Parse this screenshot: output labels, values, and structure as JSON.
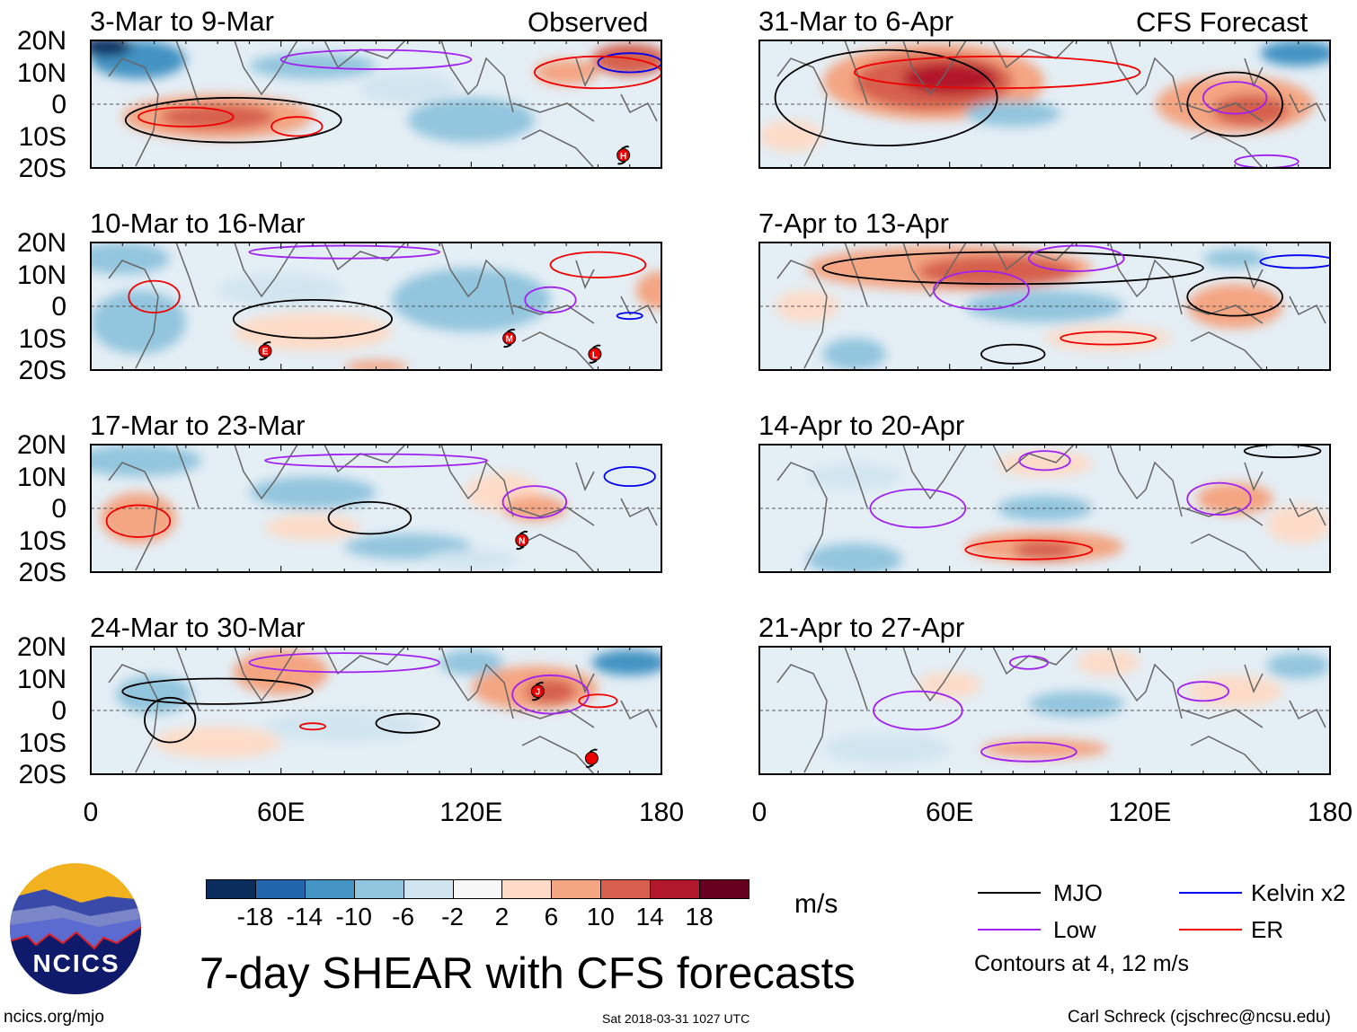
{
  "chart_data": {
    "type": "heatmap",
    "title": "7-day SHEAR with CFS forecasts",
    "units": "m/s",
    "colorbar": {
      "ticks": [
        "-18",
        "-14",
        "-10",
        "-6",
        "-2",
        "2",
        "6",
        "10",
        "14",
        "18"
      ],
      "colors": [
        "#0b2d5e",
        "#2166ac",
        "#4393c3",
        "#92c5de",
        "#d1e5f0",
        "#f7f7f7",
        "#fddbc7",
        "#f4a582",
        "#d6604d",
        "#b2182b",
        "#67001f"
      ]
    },
    "lat_labels": [
      "20N",
      "10N",
      "0",
      "10S",
      "20S"
    ],
    "lon_labels": [
      "0",
      "60E",
      "120E",
      "180"
    ],
    "lat_range": [
      -20,
      20
    ],
    "lon_range": [
      0,
      180
    ],
    "columns": [
      {
        "label": "Observed",
        "panels": [
          {
            "title": "3-Mar to 9-Mar",
            "storms": [
              {
                "letter": "H",
                "lon": 168,
                "lat": -16
              }
            ]
          },
          {
            "title": "10-Mar to 16-Mar",
            "storms": [
              {
                "letter": "E",
                "lon": 55,
                "lat": -14
              },
              {
                "letter": "M",
                "lon": 132,
                "lat": -10
              },
              {
                "letter": "L",
                "lon": 159,
                "lat": -15
              }
            ]
          },
          {
            "title": "17-Mar to 23-Mar",
            "storms": [
              {
                "letter": "N",
                "lon": 136,
                "lat": -10
              }
            ]
          },
          {
            "title": "24-Mar to 30-Mar",
            "storms": [
              {
                "letter": "J",
                "lon": 141,
                "lat": 6
              },
              {
                "letter": "",
                "lon": 158,
                "lat": -15
              }
            ]
          }
        ]
      },
      {
        "label": "CFS Forecast",
        "panels": [
          {
            "title": "31-Mar to 6-Apr",
            "storms": []
          },
          {
            "title": "7-Apr to 13-Apr",
            "storms": []
          },
          {
            "title": "14-Apr to 20-Apr",
            "storms": []
          },
          {
            "title": "21-Apr to 27-Apr",
            "storms": []
          }
        ]
      }
    ],
    "legend": [
      {
        "name": "MJO",
        "color": "#000000"
      },
      {
        "name": "Low",
        "color": "#a020f0"
      },
      {
        "name": "Kelvin x2",
        "color": "#0000ee"
      },
      {
        "name": "ER",
        "color": "#ee0000"
      }
    ],
    "contour_note": "Contours at 4, 12 m/s"
  },
  "footer": {
    "logo_text": "NCICS",
    "url": "ncics.org/mjo",
    "timestamp": "Sat 2018-03-31 1027 UTC",
    "credit": "Carl Schreck (cjschrec@ncsu.edu)"
  }
}
